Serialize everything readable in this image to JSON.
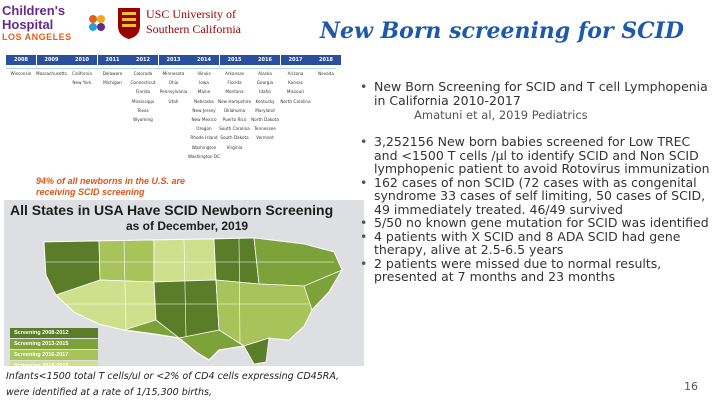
{
  "logos": {
    "chla_line1": "Children's",
    "chla_line2": "Hospital",
    "chla_line3": "LOS ANGELES",
    "usc_line1": "USC University of",
    "usc_line2": "Southern California"
  },
  "title": "New Born screening for SCID",
  "table": {
    "years": [
      "2008",
      "2009",
      "2010",
      "2011",
      "2012",
      "2013",
      "2014",
      "2015",
      "2016",
      "2017",
      "2018"
    ],
    "rows": [
      [
        "Wisconsin",
        "Massachusetts",
        "California",
        "Delaware",
        "Colorado",
        "Minnesota",
        "Illinois",
        "Arkansas",
        "Alaska",
        "Arizona",
        "Nevada"
      ],
      [
        "",
        "",
        "New York",
        "Michigan",
        "Connecticut",
        "Ohio",
        "Iowa",
        "Florida",
        "Georgia",
        "Kansas",
        ""
      ],
      [
        "",
        "",
        "",
        "",
        "Florida",
        "Pennsylvania",
        "Maine",
        "Montana",
        "Idaho",
        "Missouri",
        ""
      ],
      [
        "",
        "",
        "",
        "",
        "Mississippi",
        "Utah",
        "Nebraska",
        "New Hampshire",
        "Kentucky",
        "North Carolina",
        ""
      ],
      [
        "",
        "",
        "",
        "",
        "Texas",
        "",
        "New Jersey",
        "Oklahoma",
        "Maryland",
        "",
        ""
      ],
      [
        "",
        "",
        "",
        "",
        "Wyoming",
        "",
        "New Mexico",
        "Puerto Rico",
        "North Dakota",
        "",
        ""
      ],
      [
        "",
        "",
        "",
        "",
        "",
        "",
        "Oregon",
        "South Carolina",
        "Tennessee",
        "",
        ""
      ],
      [
        "",
        "",
        "",
        "",
        "",
        "",
        "Rhode Island",
        "South Dakota",
        "Vermont",
        "",
        ""
      ],
      [
        "",
        "",
        "",
        "",
        "",
        "",
        "Washington",
        "Virginia",
        "",
        "",
        ""
      ],
      [
        "",
        "",
        "",
        "",
        "",
        "",
        "Washington DC",
        "",
        "",
        "",
        ""
      ]
    ]
  },
  "caption": "94% of all newborns in the U.S. are receiving SCID screening",
  "map": {
    "title": "All States in USA Have SCID Newborn Screening",
    "subtitle": "as of December, 2019",
    "legend": [
      {
        "label": "Screening 2008-2012",
        "color": "#5b7d2a"
      },
      {
        "label": "Screening 2013-2015",
        "color": "#7ea23a"
      },
      {
        "label": "Screening 2016-2017",
        "color": "#a7c35a"
      },
      {
        "label": "Screening 2018-2019",
        "color": "#cfe08c"
      }
    ]
  },
  "footnote": "Infants<1500 total T cells/ul or <2% of CD4 cells expressing CD45RA, were identified at a rate of 1/15,300 births,",
  "bullets": {
    "main": "New Born Screening for SCID and T cell Lymphopenia in California 2010-2017",
    "ref": "Amatuni et al, 2019 Pediatrics",
    "items": [
      "3,252156 New born babies screened for Low TREC and <1500 T cells /μl to identify SCID and Non SCID lymphopenic patient to avoid Rotovirus immunization",
      "162 cases of non SCID (72 cases with as congenital syndrome 33 cases of self limiting, 50 cases of SCID, 49 immediately treated. 46/49 survived",
      "5/50 no known gene mutation for SCID was identified",
      "4 patients with X SCID and 8 ADA SCID had gene therapy, alive at 2.5-6.5 years",
      "2 patients were missed due to normal results, presented at 7 months and 23 months"
    ]
  },
  "page_number": "16"
}
